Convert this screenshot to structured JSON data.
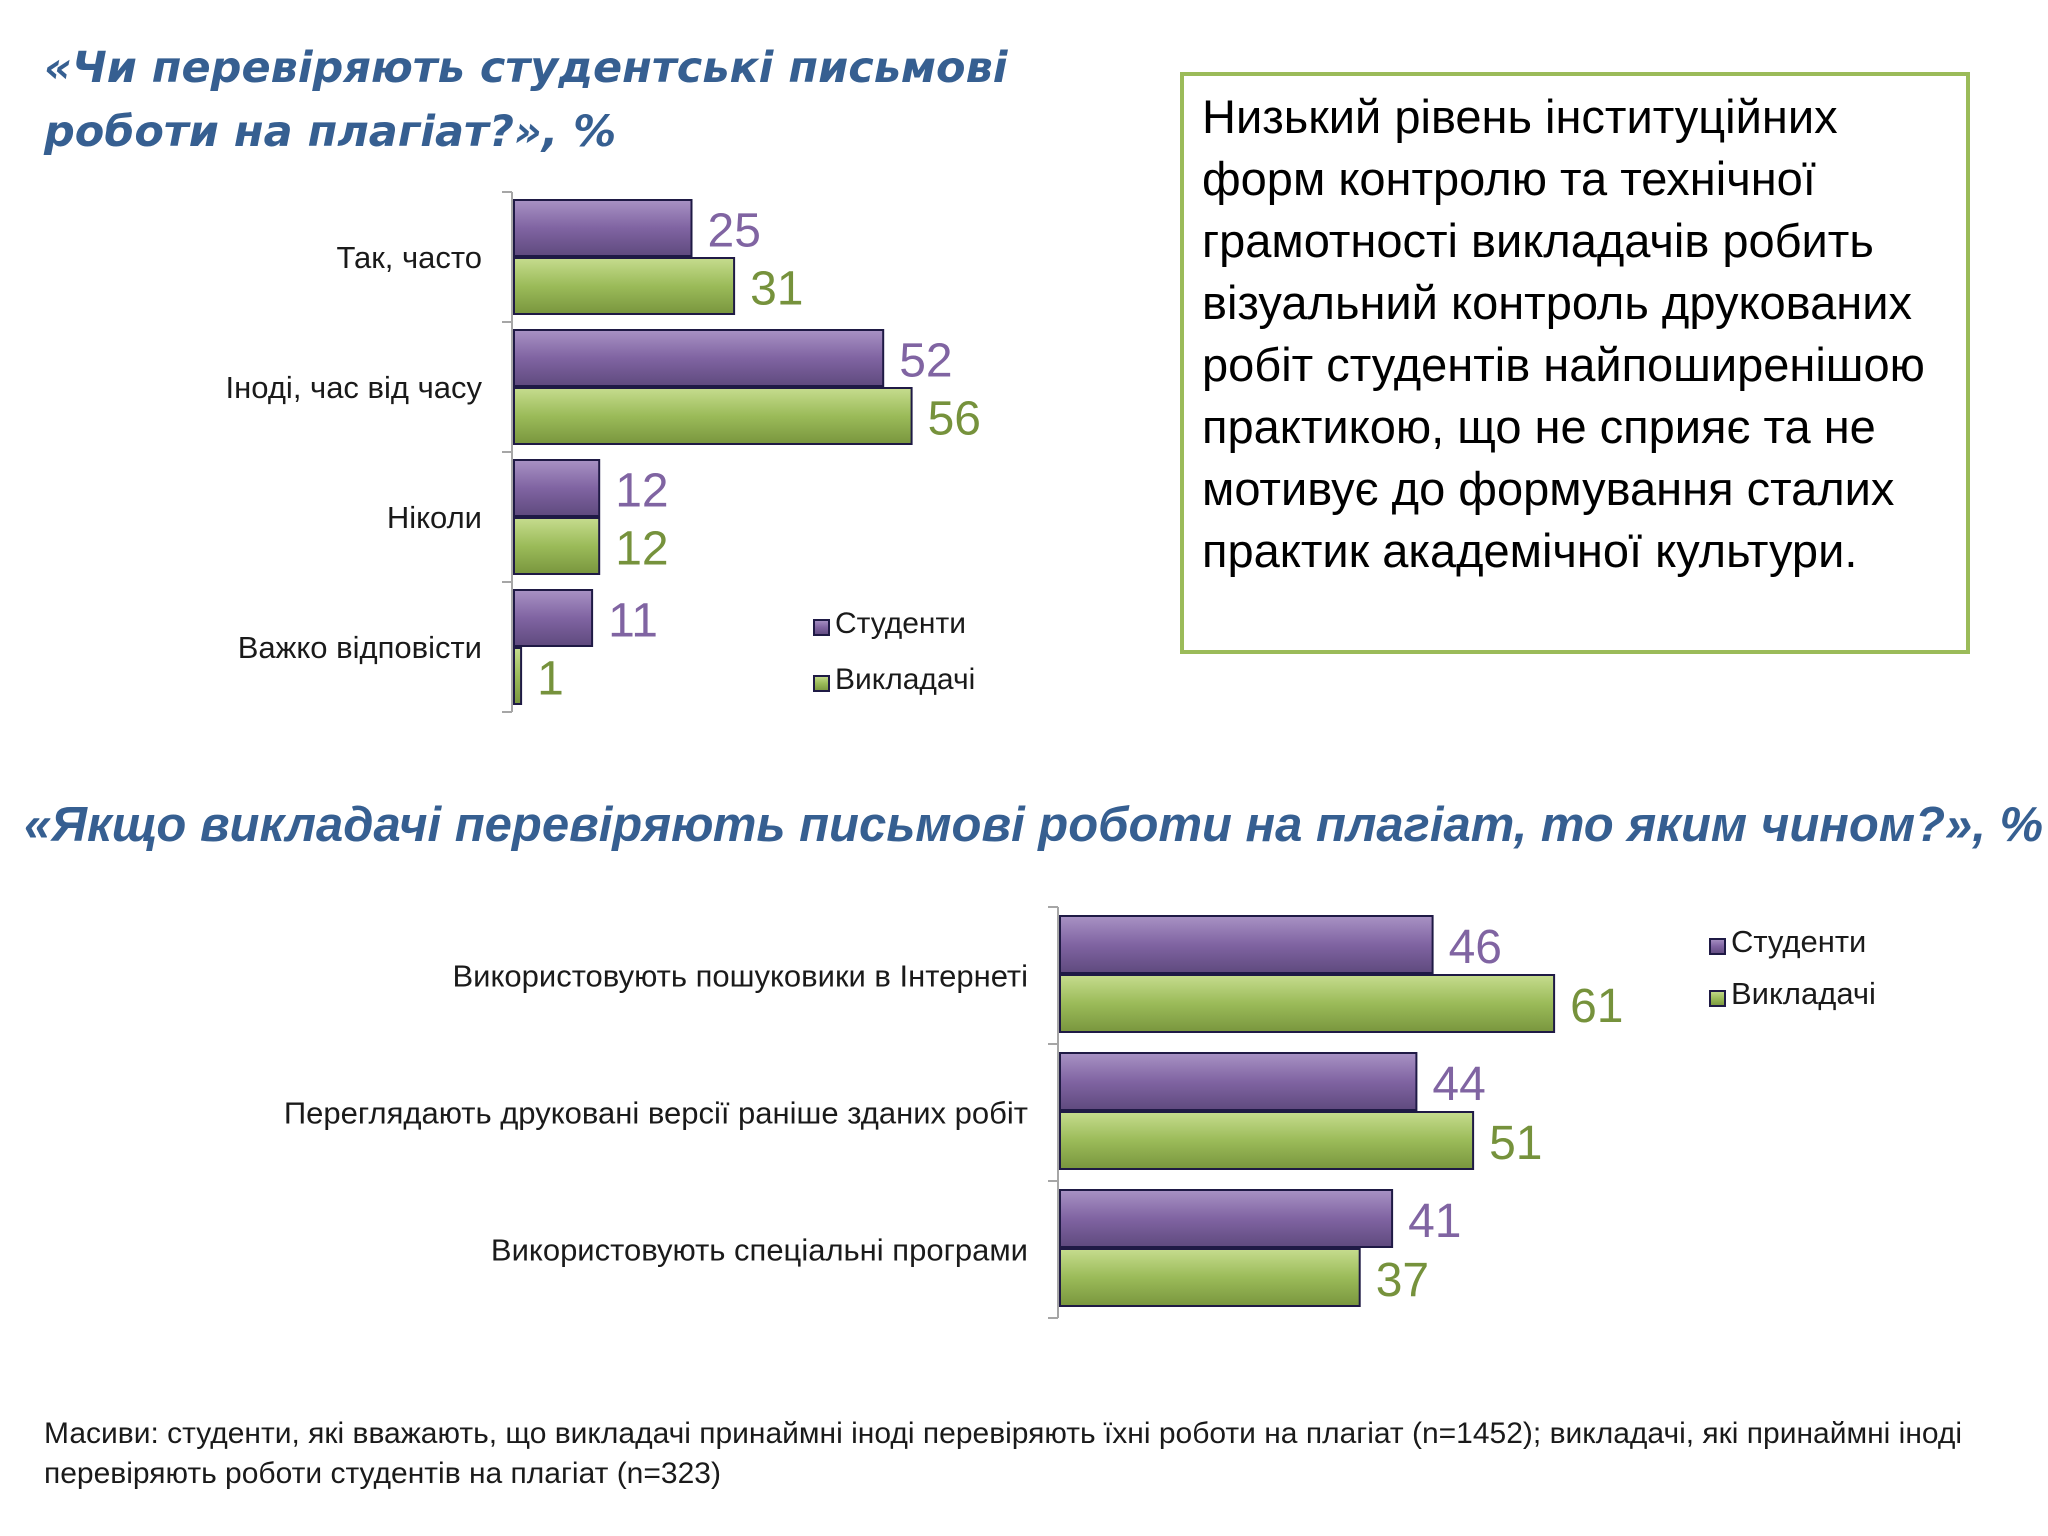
{
  "title1": "«Чи перевіряють студентські письмові роботи на плагіат?», %",
  "title2": "«Якщо викладачі перевіряють письмові роботи на плагіат, то яким чином?», %",
  "callout": "Низький рівень інституційних форм контролю та  технічної грамотності викладачів робить візуальний контроль друкованих робіт студентів найпоширенішою практикою, що не сприяє та не мотивує до формування сталих практик академічної культури.",
  "footnote": "Масиви: студенти, які вважають, що викладачі принаймні іноді перевіряють їхні роботи на плагіат (n=1452); викладачі, які принаймні іноді перевіряють роботи студентів на плагіат (n=323)",
  "colors": {
    "students": "#8064a2",
    "teachers": "#9bbb59",
    "students_label": "#8064a2",
    "teachers_label": "#76923c",
    "title": "#365f91"
  },
  "chart_data": [
    {
      "type": "bar",
      "orientation": "horizontal",
      "categories": [
        "Так, часто",
        "Іноді, час від часу",
        "Ніколи",
        "Важко відповісти"
      ],
      "series": [
        {
          "name": "Студенти",
          "values": [
            25,
            52,
            12,
            11
          ]
        },
        {
          "name": "Викладачі",
          "values": [
            31,
            56,
            12,
            1
          ]
        }
      ],
      "legend_position": "right",
      "grid": false
    },
    {
      "type": "bar",
      "orientation": "horizontal",
      "categories": [
        "Використовують пошуковики в Інтернеті",
        "Переглядають друковані версії раніше зданих робіт",
        "Використовують спеціальні програми"
      ],
      "series": [
        {
          "name": "Студенти",
          "values": [
            46,
            44,
            41
          ]
        },
        {
          "name": "Викладачі",
          "values": [
            61,
            51,
            37
          ]
        }
      ],
      "legend_position": "top-right",
      "grid": false
    }
  ]
}
